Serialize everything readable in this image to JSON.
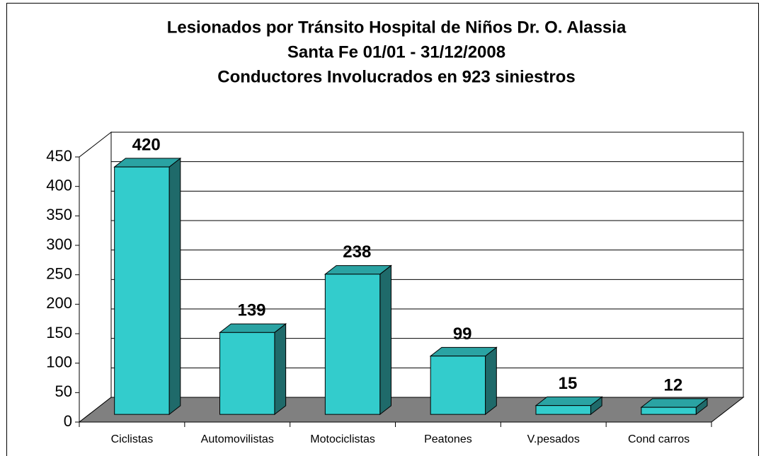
{
  "chart_data": {
    "type": "bar",
    "title": [
      "Lesionados por Tránsito Hospital de Niños Dr. O. Alassia",
      "Santa Fe 01/01 - 31/12/2008",
      "Conductores Involucrados en 923 siniestros"
    ],
    "categories": [
      "Ciclistas",
      "Automovilistas",
      "Motociclistas",
      "Peatones",
      "V.pesados",
      "Cond carros"
    ],
    "values": [
      420,
      139,
      238,
      99,
      15,
      12
    ],
    "color": "#33cccc",
    "ylim": [
      0,
      450
    ],
    "yticks": [
      0,
      50,
      100,
      150,
      200,
      250,
      300,
      350,
      400,
      450
    ],
    "grid": true
  }
}
